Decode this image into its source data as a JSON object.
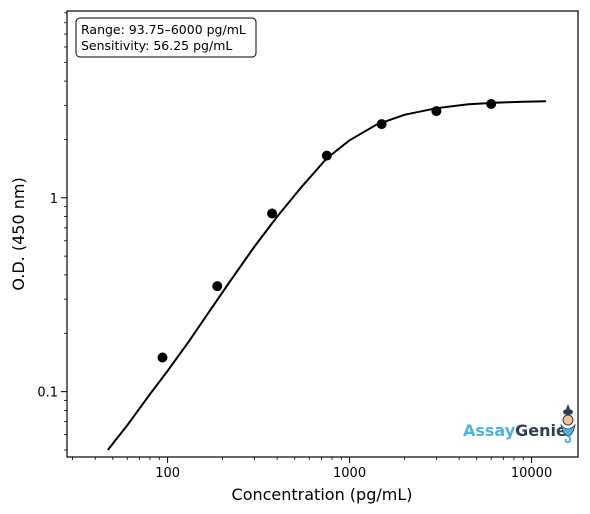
{
  "chart_data": {
    "type": "scatter",
    "xlabel": "Concentration (pg/mL)",
    "ylabel": "O.D. (450 nm)",
    "x_scale": "log",
    "y_scale": "log",
    "xlim": [
      28,
      18000
    ],
    "ylim": [
      0.046,
      9.2
    ],
    "x_ticks": [
      100,
      1000,
      10000
    ],
    "x_tick_labels": [
      "100",
      "1000",
      "10000"
    ],
    "y_ticks": [
      0.1,
      1
    ],
    "y_tick_labels": [
      "0.1",
      "1"
    ],
    "grid": false,
    "annotation": {
      "lines": [
        "Range: 93.75–6000 pg/mL",
        "Sensitivity: 56.25 pg/mL"
      ],
      "placement": "top-left"
    },
    "series": [
      {
        "kind": "points",
        "color": "#000000",
        "x": [
          93.75,
          187.5,
          375,
          750,
          1500,
          3000,
          6000
        ],
        "y": [
          0.15,
          0.35,
          0.83,
          1.65,
          2.4,
          2.8,
          3.05
        ]
      },
      {
        "kind": "fit-curve",
        "color": "#000000",
        "x": [
          46.9,
          60,
          80,
          100,
          130,
          170,
          220,
          300,
          400,
          550,
          750,
          1000,
          1400,
          2000,
          3000,
          4500,
          6500,
          9000,
          12000
        ],
        "y": [
          0.05,
          0.067,
          0.097,
          0.128,
          0.18,
          0.26,
          0.37,
          0.56,
          0.8,
          1.15,
          1.6,
          1.98,
          2.38,
          2.68,
          2.9,
          3.04,
          3.1,
          3.13,
          3.15
        ]
      }
    ],
    "logo": {
      "part1": "Assay",
      "part2": "Genie",
      "placement": "bottom-right",
      "color1": "#4cb3e6",
      "color2": "#2c3e50"
    }
  }
}
